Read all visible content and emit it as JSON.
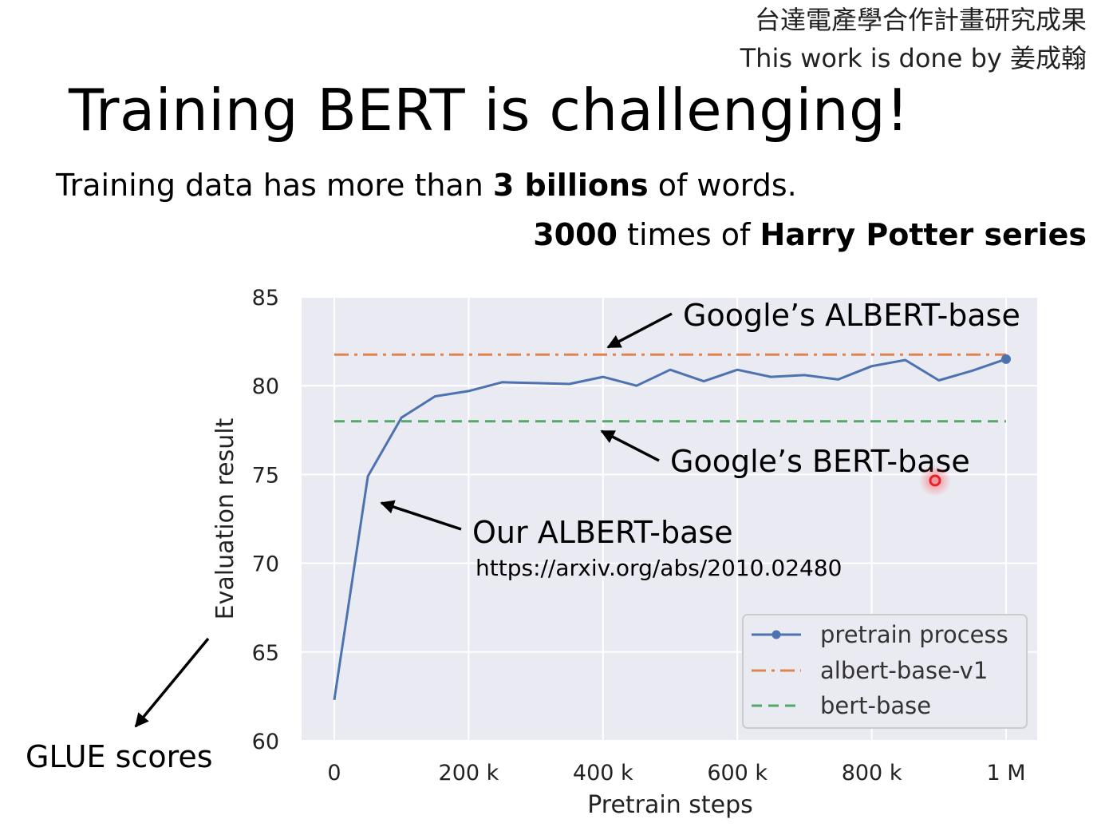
{
  "slide": {
    "credit_line1": "台達電產學合作計畫研究成果",
    "credit_line2": "This work is done by 姜成翰",
    "title": "Training BERT is challenging!",
    "line1_pre": "Training data has more than ",
    "line1_bold": "3 billions",
    "line1_post": " of words.",
    "line2_bold1": "3000",
    "line2_mid": " times of ",
    "line2_bold2": "Harry Potter series"
  },
  "annotations": {
    "albert_google": "Google’s ALBERT-base",
    "bert_google": "Google’s BERT-base",
    "ours": "Our ALBERT-base",
    "url": "https://arxiv.org/abs/2010.02480",
    "glue": "GLUE scores"
  },
  "chart_data": {
    "type": "line",
    "xlabel": "Pretrain steps",
    "ylabel": "Evaluation result",
    "xlim": [
      0,
      1000000
    ],
    "ylim": [
      60,
      85
    ],
    "xticks": [
      0,
      200000,
      400000,
      600000,
      800000,
      1000000
    ],
    "xtick_labels": [
      "0",
      "200 k",
      "400 k",
      "600 k",
      "800 k",
      "1 M"
    ],
    "yticks": [
      60,
      65,
      70,
      75,
      80,
      85
    ],
    "ytick_labels": [
      "60",
      "65",
      "70",
      "75",
      "80",
      "85"
    ],
    "grid": true,
    "legend_position": "bottom-right",
    "series": [
      {
        "name": "pretrain process",
        "style": "solid",
        "color": "#4c72b0",
        "x": [
          0,
          50000,
          100000,
          150000,
          200000,
          250000,
          300000,
          350000,
          400000,
          450000,
          500000,
          550000,
          600000,
          650000,
          700000,
          750000,
          800000,
          850000,
          900000,
          950000,
          1000000
        ],
        "y": [
          62.3,
          74.9,
          78.2,
          79.4,
          79.7,
          80.2,
          80.15,
          80.1,
          80.5,
          80.0,
          80.9,
          80.25,
          80.9,
          80.5,
          80.6,
          80.35,
          81.1,
          81.45,
          80.3,
          80.85,
          81.5
        ]
      },
      {
        "name": "albert-base-v1",
        "style": "dashdot",
        "color": "#dd8452",
        "x": [
          0,
          1000000
        ],
        "y": [
          81.75,
          81.75
        ]
      },
      {
        "name": "bert-base",
        "style": "dashed",
        "color": "#55a868",
        "x": [
          0,
          1000000
        ],
        "y": [
          78.0,
          78.0
        ]
      }
    ]
  },
  "colors": {
    "plot_background": "#eaeaf2",
    "grid": "#ffffff",
    "cursor_marker": "#e8212b"
  }
}
